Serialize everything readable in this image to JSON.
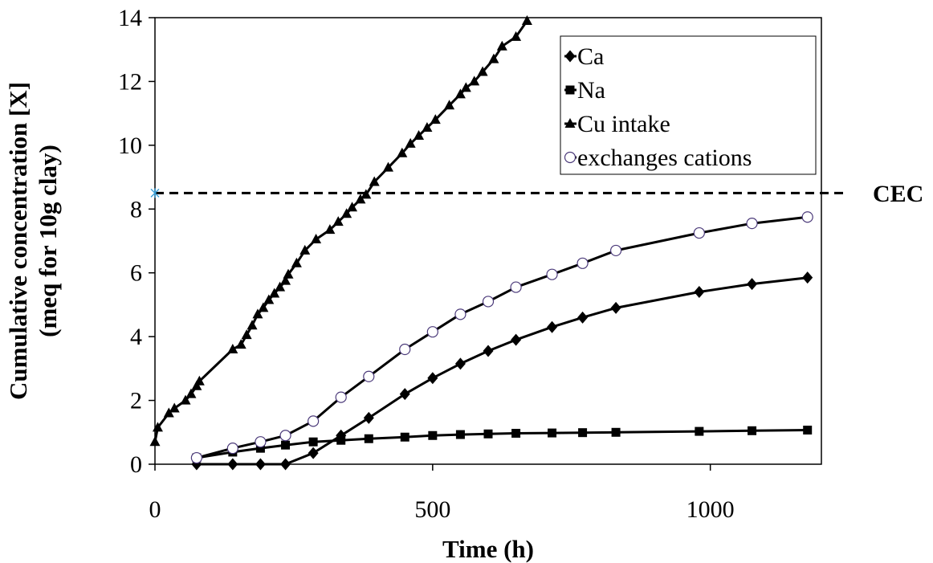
{
  "chart_data": {
    "type": "line",
    "title": "",
    "xlabel": "Time (h)",
    "ylabel_line1": "Cumulative concentration [X]",
    "ylabel_line2": "(meq for 10g clay)",
    "xlim": [
      0,
      1200
    ],
    "ylim": [
      0,
      14
    ],
    "x_ticks": [
      0,
      500,
      1000
    ],
    "y_ticks": [
      0,
      2,
      4,
      6,
      8,
      10,
      12,
      14
    ],
    "grid": false,
    "legend_position": "top-right",
    "reference_line": {
      "label": "CEC",
      "y": 8.5,
      "style": "dashed"
    },
    "series": [
      {
        "name": "Ca",
        "marker": "diamond",
        "color": "#000000",
        "x": [
          75,
          140,
          190,
          235,
          285,
          335,
          385,
          450,
          500,
          550,
          600,
          650,
          715,
          770,
          830,
          980,
          1075,
          1175
        ],
        "y": [
          0,
          0,
          0,
          0,
          0.35,
          0.9,
          1.45,
          2.2,
          2.7,
          3.15,
          3.55,
          3.9,
          4.3,
          4.6,
          4.9,
          5.4,
          5.65,
          5.85
        ]
      },
      {
        "name": "Na",
        "marker": "square",
        "color": "#000000",
        "x": [
          75,
          140,
          190,
          235,
          285,
          335,
          385,
          450,
          500,
          550,
          600,
          650,
          715,
          770,
          830,
          980,
          1075,
          1175
        ],
        "y": [
          0.2,
          0.38,
          0.5,
          0.6,
          0.7,
          0.75,
          0.8,
          0.85,
          0.9,
          0.93,
          0.95,
          0.97,
          0.98,
          0.99,
          1.0,
          1.03,
          1.05,
          1.07
        ]
      },
      {
        "name": "Cu intake",
        "marker": "triangle",
        "color": "#000000",
        "x": [
          0,
          5,
          25,
          35,
          55,
          65,
          75,
          80,
          140,
          155,
          165,
          175,
          185,
          195,
          205,
          215,
          225,
          235,
          240,
          255,
          270,
          290,
          315,
          330,
          345,
          355,
          370,
          380,
          395,
          420,
          445,
          460,
          475,
          490,
          505,
          530,
          550,
          560,
          575,
          590,
          610,
          625,
          650,
          670
        ],
        "y": [
          0.7,
          1.15,
          1.6,
          1.75,
          2.0,
          2.2,
          2.45,
          2.6,
          3.6,
          3.75,
          4.05,
          4.35,
          4.7,
          4.9,
          5.15,
          5.35,
          5.55,
          5.75,
          5.95,
          6.3,
          6.7,
          7.05,
          7.35,
          7.6,
          7.85,
          8.05,
          8.3,
          8.45,
          8.85,
          9.3,
          9.75,
          10.05,
          10.3,
          10.55,
          10.8,
          11.25,
          11.6,
          11.8,
          12.0,
          12.3,
          12.7,
          13.1,
          13.4,
          13.9
        ]
      },
      {
        "name": "exchanges cations",
        "marker": "open-circle",
        "color": "#000000",
        "marker_edge": "#4b3a7a",
        "x": [
          75,
          140,
          190,
          235,
          285,
          335,
          385,
          450,
          500,
          550,
          600,
          650,
          715,
          770,
          830,
          980,
          1075,
          1175
        ],
        "y": [
          0.2,
          0.5,
          0.7,
          0.9,
          1.35,
          2.1,
          2.75,
          3.6,
          4.15,
          4.7,
          5.1,
          5.55,
          5.95,
          6.3,
          6.7,
          7.25,
          7.55,
          7.75
        ]
      }
    ]
  }
}
